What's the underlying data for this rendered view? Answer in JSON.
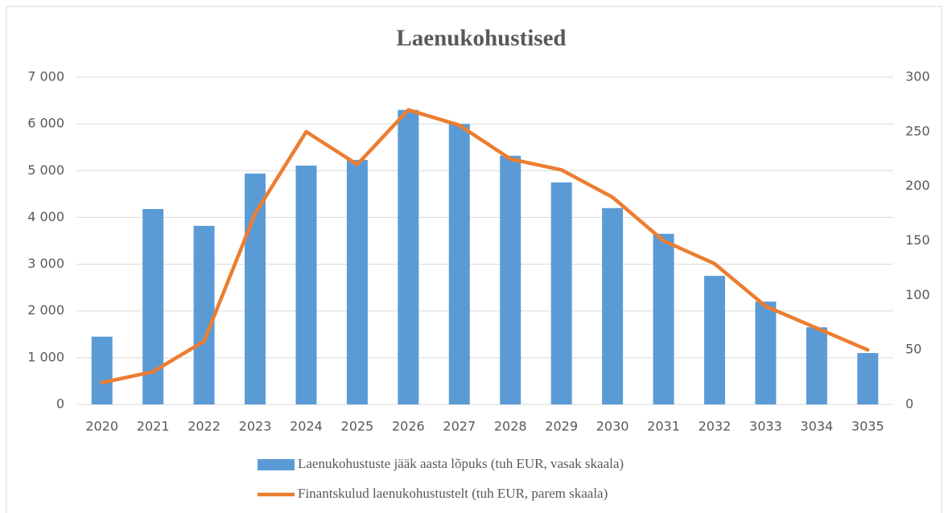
{
  "chart_data": {
    "type": "combo",
    "title": "Laenukohustised",
    "categories": [
      "2020",
      "2021",
      "2022",
      "2023",
      "2024",
      "2025",
      "2026",
      "2027",
      "2028",
      "2029",
      "2030",
      "2031",
      "2032",
      "3033",
      "3034",
      "3035"
    ],
    "series": [
      {
        "name": "Laenukohustuste jääk aasta lõpuks (tuh EUR, vasak skaala)",
        "type": "bar",
        "color": "#5b9bd5",
        "values": [
          1450,
          4180,
          3820,
          4940,
          5110,
          5230,
          6300,
          6000,
          5320,
          4750,
          4200,
          3650,
          2750,
          2200,
          1650,
          1100
        ]
      },
      {
        "name": "Finantskulud laenukohustustelt (tuh EUR, parem skaala)",
        "type": "line",
        "axis": "y2",
        "color": "#ed7d31",
        "values": [
          20,
          30,
          58,
          175,
          250,
          220,
          270,
          256,
          225,
          215,
          190,
          150,
          129,
          90,
          70,
          50
        ]
      }
    ],
    "ylim": [
      0,
      7000
    ],
    "yticks": [
      0,
      {
        "value": 1000,
        "label": "1 000"
      },
      {
        "value": 2000,
        "label": "2 000"
      },
      {
        "value": 3000,
        "label": "3 000"
      },
      {
        "value": 4000,
        "label": "4 000"
      },
      {
        "value": 5000,
        "label": "5 000"
      },
      {
        "value": 6000,
        "label": "6 000"
      },
      {
        "value": 7000,
        "label": "7 000"
      }
    ],
    "y2lim": [
      0,
      300
    ],
    "y2ticks": [
      0,
      50,
      100,
      150,
      200,
      250,
      300
    ],
    "grid": true,
    "legend": "bottom"
  }
}
